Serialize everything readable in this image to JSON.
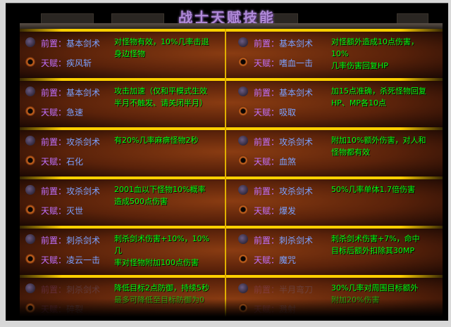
{
  "title": "战士天赋技能",
  "prereq_label": "前置：",
  "talent_label": "天赋：",
  "rows": [
    [
      {
        "prereq": "基本剑术",
        "talent": "疾风斩",
        "desc": [
          "对怪物有效，10%几率击退",
          "身边怪物"
        ]
      },
      {
        "prereq": "基本剑术",
        "talent": "嗜血一击",
        "desc": [
          "对怪额外造成10点伤害，10%",
          "几率伤害回复HP"
        ]
      }
    ],
    [
      {
        "prereq": "基本剑术",
        "talent": "急速",
        "desc": [
          "攻击加速（仅和平模式生效",
          "半月不触发、请关闭半月）"
        ]
      },
      {
        "prereq": "基本剑术",
        "talent": "吸取",
        "desc": [
          "加15点准确，杀死怪物回复",
          "HP、MP各10点"
        ]
      }
    ],
    [
      {
        "prereq": "攻杀剑术",
        "talent": "石化",
        "desc": [
          "有20%几率麻痹怪物2秒",
          ""
        ]
      },
      {
        "prereq": "攻杀剑术",
        "talent": "血煞",
        "desc": [
          "附加10%额外伤害，对人和",
          "怪物都有效"
        ]
      }
    ],
    [
      {
        "prereq": "攻杀剑术",
        "talent": "灭世",
        "desc": [
          "2001血以下怪物10%概率",
          "造成500点伤害"
        ]
      },
      {
        "prereq": "攻杀剑术",
        "talent": "爆发",
        "desc": [
          "50%几率单体1.7倍伤害",
          ""
        ]
      }
    ],
    [
      {
        "prereq": "刺杀剑术",
        "talent": "凌云一击",
        "desc": [
          "刺杀剑术伤害+10%，10%几",
          "率对怪物附加100点伤害"
        ]
      },
      {
        "prereq": "刺杀剑术",
        "talent": "魔咒",
        "desc": [
          "刺杀剑术伤害+7%，命中",
          "目标后额外扣除其30MP"
        ]
      }
    ],
    [
      {
        "prereq": "刺杀剑术",
        "talent": "碎裂",
        "desc": [
          "降低目标2点防御，持续5秒",
          "最多可降低至目标防御为0"
        ]
      },
      {
        "prereq": "半月弯刀",
        "talent": "溅射",
        "desc": [
          "30%几率对周围目标额外",
          "附加20%伤害"
        ]
      }
    ]
  ],
  "colors": {
    "prereq_label": "#c070ff",
    "skill_name": "#7aa0ff",
    "desc": "#00ff10",
    "divider": "#ffd000"
  }
}
